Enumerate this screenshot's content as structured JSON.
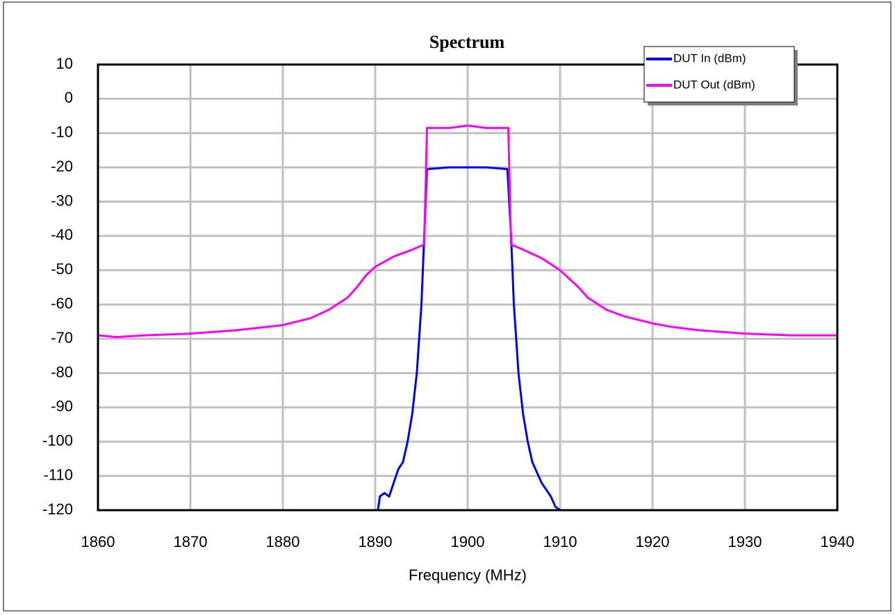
{
  "chart_data": {
    "type": "line",
    "title": "Spectrum",
    "x_label": "Frequency (MHz)",
    "xlim": [
      1860,
      1940
    ],
    "xticks": [
      1860,
      1870,
      1880,
      1890,
      1900,
      1910,
      1920,
      1930,
      1940
    ],
    "ylim": [
      -120,
      10
    ],
    "yticks": [
      10,
      0,
      -10,
      -20,
      -30,
      -40,
      -50,
      -60,
      -70,
      -80,
      -90,
      -100,
      -110,
      -120
    ],
    "grid": true,
    "legend": "upper right",
    "series": [
      {
        "name": "DUT In (dBm)",
        "color": "#0000ff",
        "x": [
          1890.3,
          1890.5,
          1891,
          1891.5,
          1892,
          1892.5,
          1893,
          1893.5,
          1894,
          1894.5,
          1895,
          1895.3,
          1895.6,
          1898,
          1900,
          1902,
          1904.3,
          1904.7,
          1905,
          1905.5,
          1906,
          1906.5,
          1907,
          1907.5,
          1908,
          1908.5,
          1909,
          1909.5,
          1910,
          1910.7
        ],
        "values": [
          -120,
          -116,
          -115,
          -116,
          -112,
          -108,
          -106,
          -100,
          -92,
          -80,
          -60,
          -40,
          -20.5,
          -20,
          -20,
          -20,
          -20.5,
          -40,
          -60,
          -80,
          -92,
          -100,
          -106,
          -109,
          -112,
          -114,
          -116,
          -119,
          -120,
          -120
        ]
      },
      {
        "name": "DUT Out (dBm)",
        "color": "#ff00ff",
        "x": [
          1860,
          1862,
          1865,
          1870,
          1875,
          1880,
          1883,
          1885,
          1887,
          1888,
          1889,
          1890,
          1892,
          1894,
          1895.3,
          1895.6,
          1898,
          1900,
          1902,
          1904.4,
          1904.7,
          1906,
          1908,
          1910,
          1912,
          1913,
          1915,
          1917,
          1920,
          1922,
          1925,
          1930,
          1935,
          1940
        ],
        "values": [
          -69,
          -69.5,
          -69,
          -68.5,
          -67.5,
          -66,
          -64,
          -61.5,
          -58,
          -55,
          -51.5,
          -49,
          -46,
          -44,
          -42.5,
          -8.5,
          -8.5,
          -7.8,
          -8.5,
          -8.5,
          -42.5,
          -44,
          -46.5,
          -50,
          -55,
          -58,
          -61.5,
          -63.5,
          -65.5,
          -66.5,
          -67.5,
          -68.5,
          -69,
          -69
        ]
      }
    ]
  }
}
